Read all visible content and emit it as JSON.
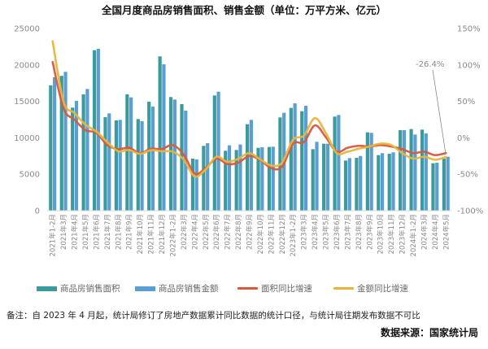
{
  "chart_data": {
    "type": "bar+line",
    "title": "全国月度商品房销售面积、销售金额（单位：万平方米、亿元）",
    "categories": [
      "2021年1-2月",
      "2021年3月",
      "2021年4月",
      "2021年5月",
      "2021年6月",
      "2021年7月",
      "2021年8月",
      "2021年9月",
      "2021年10月",
      "2021年11月",
      "2021年12月",
      "2022年1-2月",
      "2022年3月",
      "2022年4月",
      "2022年5月",
      "2022年6月",
      "2022年7月",
      "2022年8月",
      "2022年9月",
      "2022年10月",
      "2022年11月",
      "2022年12月",
      "2023年1-2月",
      "2023年3月",
      "2023年4月",
      "2023年5月",
      "2023年6月",
      "2023年7月",
      "2023年8月",
      "2023年9月",
      "2023年10月",
      "2023年11月",
      "2023年12月",
      "2024年1-2月",
      "2024年3月",
      "2024年4月",
      "2024年5月"
    ],
    "left_axis": {
      "ylim": [
        0,
        25000
      ],
      "ticks": [
        "0",
        "5000",
        "10000",
        "15000",
        "20000",
        "25000"
      ]
    },
    "right_axis": {
      "ylim": [
        -100,
        150
      ],
      "ticks": [
        "-100%",
        "-50%",
        "0%",
        "50%",
        "100%",
        "150%"
      ]
    },
    "grid": false,
    "legend_position": "bottom",
    "series": [
      {
        "name": "商品房销售面积",
        "type": "bar",
        "axis": "left",
        "color": "#3b9a9c",
        "values": [
          17200,
          18500,
          14140,
          15960,
          22020,
          12830,
          12390,
          15960,
          12570,
          14950,
          21170,
          15590,
          14620,
          7140,
          8890,
          15810,
          8220,
          8330,
          11870,
          8630,
          8740,
          12800,
          14100,
          13650,
          8440,
          9190,
          12910,
          6880,
          7250,
          10750,
          7630,
          7810,
          11050,
          11200,
          11120,
          6510,
          7140
        ]
      },
      {
        "name": "商品房销售金额",
        "type": "bar",
        "axis": "left",
        "color": "#5b9fd2",
        "values": [
          18300,
          19050,
          15070,
          16700,
          22210,
          13350,
          12460,
          15550,
          12280,
          14280,
          20090,
          15250,
          13730,
          7030,
          9260,
          16330,
          8970,
          9080,
          12460,
          8700,
          8780,
          13430,
          14730,
          14400,
          9450,
          9190,
          13130,
          7220,
          7510,
          10680,
          7890,
          8000,
          11050,
          10450,
          10600,
          6580,
          7400
        ]
      },
      {
        "name": "面积同比增速",
        "type": "line",
        "axis": "right",
        "color": "#d9573f",
        "values": [
          104,
          40,
          25,
          10.5,
          6.8,
          -10,
          -15.5,
          -13.7,
          -21,
          -15,
          -15.5,
          -10,
          -23,
          -49,
          -41.6,
          -28.6,
          -36,
          -34,
          -25,
          -30.5,
          -41.6,
          -39.7,
          -8,
          -6,
          17,
          1,
          -19,
          -13.7,
          -11,
          -12,
          -10,
          -12,
          -15.5,
          -21,
          -19,
          -23.7,
          -21
        ]
      },
      {
        "name": "金额同比增速",
        "type": "line",
        "axis": "right",
        "color": "#e8b53c",
        "values": [
          132.5,
          49.5,
          34,
          18,
          8.6,
          -6,
          -18.5,
          -16.7,
          -22,
          -17,
          -18.5,
          -19,
          -30,
          -53,
          -43.5,
          -26,
          -33,
          -28.6,
          -21,
          -29.7,
          -38,
          -34,
          -2.5,
          3,
          27,
          6.8,
          -21,
          -19,
          -15,
          -12,
          -8,
          -10,
          -21,
          -28.6,
          -26,
          -30,
          -26.4
        ]
      }
    ],
    "annotation": "-26.4%"
  },
  "note": "备注：自 2023 年 4 月起，统计局修订了房地产数据累计同比数据的统计口径，与统计局往期发布数据不可比",
  "source": "数据来源：国家统计局"
}
